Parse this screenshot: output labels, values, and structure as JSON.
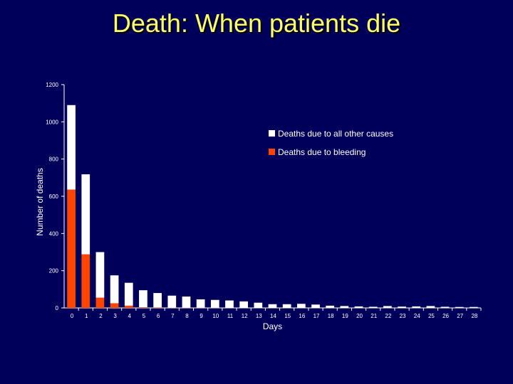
{
  "colors": {
    "background": "#00005a",
    "title": "#ffff66",
    "bleeding": "#ff4400",
    "other": "#ffffff",
    "axis": "#ffffff"
  },
  "chart_data": {
    "type": "bar",
    "stacked": true,
    "title": "Death: When patients die",
    "xlabel": "Days",
    "ylabel": "Number of deaths",
    "ylim": [
      0,
      1200
    ],
    "yticks": [
      0,
      200,
      400,
      600,
      800,
      1000,
      1200
    ],
    "categories": [
      "0",
      "1",
      "2",
      "3",
      "4",
      "5",
      "6",
      "7",
      "8",
      "9",
      "10",
      "11",
      "12",
      "13",
      "14",
      "15",
      "16",
      "17",
      "18",
      "19",
      "20",
      "21",
      "22",
      "23",
      "24",
      "25",
      "26",
      "27",
      "28"
    ],
    "series": [
      {
        "name": "Deaths due to bleeding",
        "color": "#ff4400",
        "values": [
          636,
          288,
          55,
          25,
          12,
          3,
          2,
          1,
          1,
          1,
          1,
          0,
          0,
          0,
          0,
          0,
          0,
          0,
          0,
          0,
          0,
          0,
          0,
          0,
          0,
          0,
          0,
          0,
          0
        ]
      },
      {
        "name": "Deaths due to all other causes",
        "color": "#ffffff",
        "values": [
          454,
          430,
          245,
          150,
          123,
          92,
          78,
          65,
          60,
          45,
          42,
          40,
          35,
          28,
          20,
          20,
          22,
          18,
          12,
          10,
          8,
          6,
          10,
          7,
          8,
          10,
          6,
          5,
          5
        ]
      }
    ],
    "legend": {
      "position": "top-right",
      "entries": [
        "Deaths due to all other causes",
        "Deaths due to bleeding"
      ]
    },
    "grid": false
  }
}
